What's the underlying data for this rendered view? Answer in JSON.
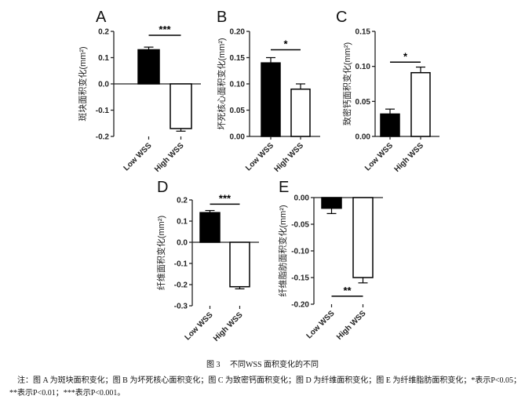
{
  "chart_data": [
    {
      "type": "bar",
      "panel": "A",
      "ylabel": "斑块面积变化(mm²)",
      "categories": [
        "Low WSS",
        "High WSS"
      ],
      "values": [
        0.13,
        -0.17
      ],
      "errors": [
        0.01,
        0.01
      ],
      "ylim": [
        -0.2,
        0.2
      ],
      "yticks": [
        "-0.2",
        "-0.1",
        "0.0",
        "0.1",
        "0.2"
      ],
      "tickvals": [
        -0.2,
        -0.1,
        0,
        0.1,
        0.2
      ],
      "significance": "***",
      "sig_level": 0.185
    },
    {
      "type": "bar",
      "panel": "B",
      "ylabel": "坏死核心面积变化(mm²)",
      "categories": [
        "Low WSS",
        "High WSS"
      ],
      "values": [
        0.14,
        0.09
      ],
      "errors": [
        0.01,
        0.01
      ],
      "ylim": [
        0,
        0.2
      ],
      "yticks": [
        "0.00",
        "0.05",
        "0.10",
        "0.15",
        "0.20"
      ],
      "tickvals": [
        0,
        0.05,
        0.1,
        0.15,
        0.2
      ],
      "significance": "*",
      "sig_level": 0.165
    },
    {
      "type": "bar",
      "panel": "C",
      "ylabel": "致密钙面积变化(mm²)",
      "categories": [
        "Low WSS",
        "High WSS"
      ],
      "values": [
        0.032,
        0.091
      ],
      "errors": [
        0.007,
        0.008
      ],
      "ylim": [
        0,
        0.15
      ],
      "yticks": [
        "0.00",
        "0.05",
        "0.10",
        "0.15"
      ],
      "tickvals": [
        0,
        0.05,
        0.1,
        0.15
      ],
      "significance": "*",
      "sig_level": 0.106
    },
    {
      "type": "bar",
      "panel": "D",
      "ylabel": "纤维面积变化(mm²)",
      "categories": [
        "Low WSS",
        "High WSS"
      ],
      "values": [
        0.14,
        -0.21
      ],
      "errors": [
        0.01,
        0.01
      ],
      "ylim": [
        -0.3,
        0.2
      ],
      "yticks": [
        "-0.3",
        "-0.2",
        "-0.1",
        "0.0",
        "0.1",
        "0.2"
      ],
      "tickvals": [
        -0.3,
        -0.2,
        -0.1,
        0,
        0.1,
        0.2
      ],
      "significance": "***",
      "sig_level": 0.18
    },
    {
      "type": "bar",
      "panel": "E",
      "ylabel": "纤维脂肪面积变化(mm²)",
      "categories": [
        "Low WSS",
        "High WSS"
      ],
      "values": [
        -0.02,
        -0.15
      ],
      "errors": [
        0.01,
        0.01
      ],
      "ylim": [
        -0.2,
        0
      ],
      "yticks": [
        "-0.20",
        "-0.15",
        "-0.10",
        "-0.05",
        "0.00"
      ],
      "tickvals": [
        -0.2,
        -0.15,
        -0.1,
        -0.05,
        0
      ],
      "significance": "**",
      "sig_level": -0.185
    }
  ],
  "caption": {
    "title": "图 3　 不同WSS 面积变化的不同",
    "note_line1": "注：图 A 为斑块面积变化；图 B 为坏死核心面积变化；图 C 为致密钙面积变化；图 D 为纤维面积变化；图 E 为纤维脂肪面积变化；*表示P<0.05；",
    "note_line2": "**表示P<0.01；***表示P<0.001。"
  }
}
